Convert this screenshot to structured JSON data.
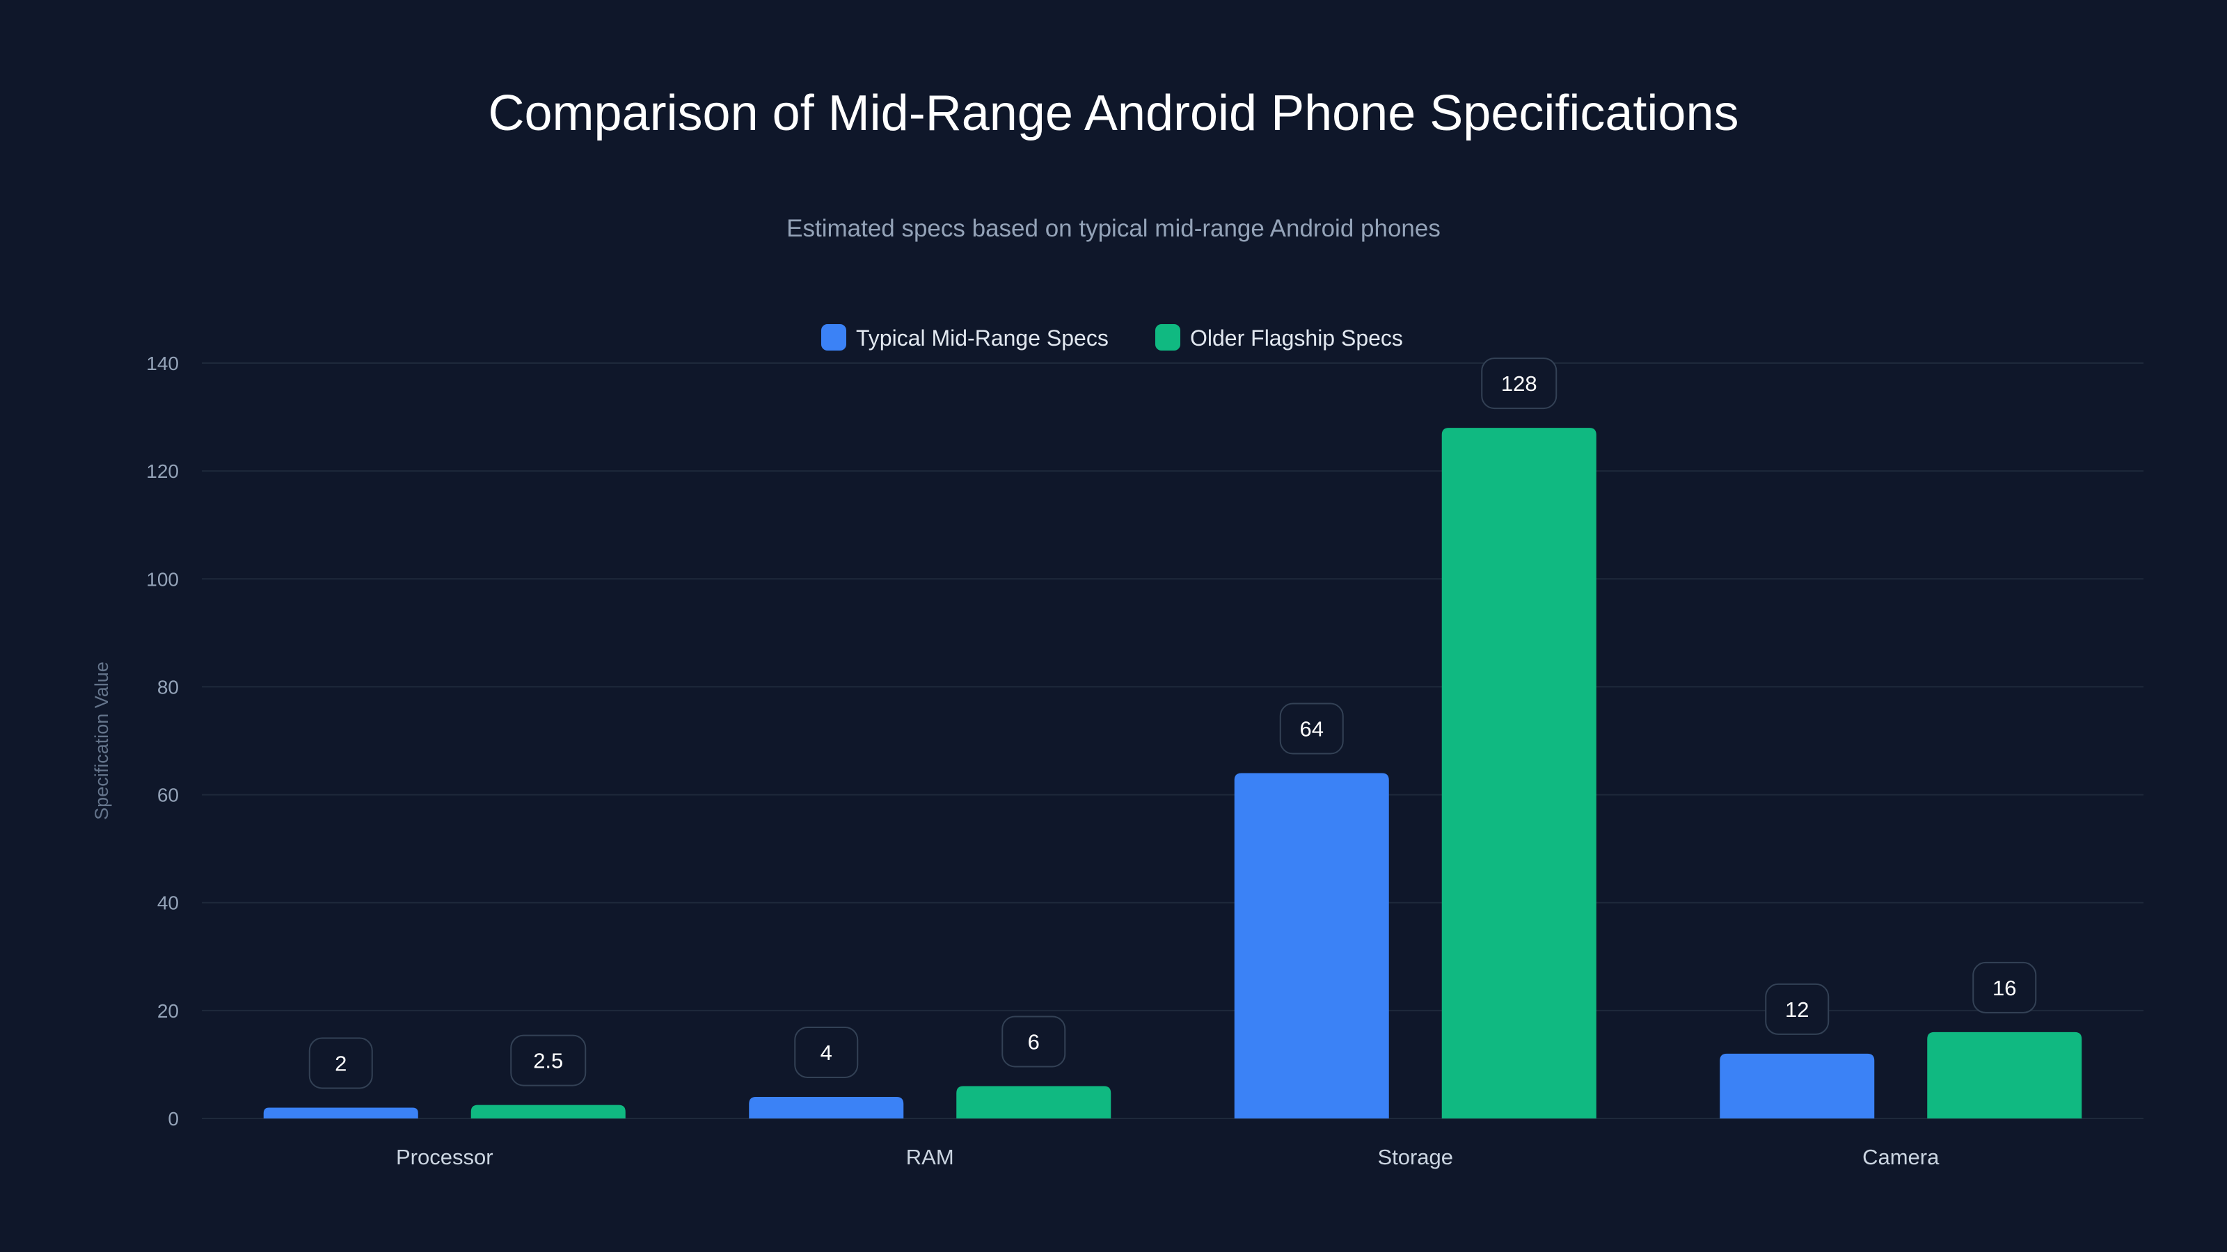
{
  "chart_data": {
    "type": "bar",
    "title": "Comparison of Mid-Range Android Phone Specifications",
    "subtitle": "Estimated specs based on typical mid-range Android phones",
    "xlabel": "",
    "ylabel": "Specification Value",
    "ylim": [
      0,
      140
    ],
    "yticks": [
      0,
      20,
      40,
      60,
      80,
      100,
      120,
      140
    ],
    "grid": true,
    "legend_position": "top-center",
    "categories": [
      "Processor",
      "RAM",
      "Storage",
      "Camera"
    ],
    "series": [
      {
        "name": "Typical Mid-Range Specs",
        "color": "#3b82f6",
        "values": [
          2,
          4,
          64,
          12
        ]
      },
      {
        "name": "Older Flagship Specs",
        "color": "#10b981",
        "values": [
          2.5,
          6,
          128,
          16
        ]
      }
    ]
  }
}
